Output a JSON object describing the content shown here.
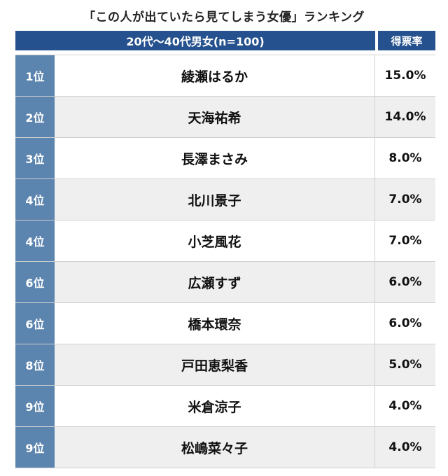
{
  "title": "「この人が出ていたら見てしまう女優」ランキング",
  "header": {
    "group_label": "20代〜40代男女(n=100)",
    "rate_label": "得票率"
  },
  "colors": {
    "header_bg": "#25518e",
    "rank_bg": "#5b84ae",
    "alt_row_bg": "#efefef"
  },
  "chart_data": {
    "type": "table",
    "title": "「この人が出ていたら見てしまう女優」ランキング",
    "columns": [
      "",
      "20代〜40代男女(n=100)",
      "得票率"
    ],
    "rows": [
      {
        "rank": "1位",
        "name": "綾瀬はるか",
        "rate": "15.0%",
        "value": 15.0
      },
      {
        "rank": "2位",
        "name": "天海祐希",
        "rate": "14.0%",
        "value": 14.0
      },
      {
        "rank": "3位",
        "name": "長澤まさみ",
        "rate": "8.0%",
        "value": 8.0
      },
      {
        "rank": "4位",
        "name": "北川景子",
        "rate": "7.0%",
        "value": 7.0
      },
      {
        "rank": "4位",
        "name": "小芝風花",
        "rate": "7.0%",
        "value": 7.0
      },
      {
        "rank": "6位",
        "name": "広瀬すず",
        "rate": "6.0%",
        "value": 6.0
      },
      {
        "rank": "6位",
        "name": "橋本環奈",
        "rate": "6.0%",
        "value": 6.0
      },
      {
        "rank": "8位",
        "name": "戸田恵梨香",
        "rate": "5.0%",
        "value": 5.0
      },
      {
        "rank": "9位",
        "name": "米倉涼子",
        "rate": "4.0%",
        "value": 4.0
      },
      {
        "rank": "9位",
        "name": "松嶋菜々子",
        "rate": "4.0%",
        "value": 4.0
      }
    ]
  }
}
